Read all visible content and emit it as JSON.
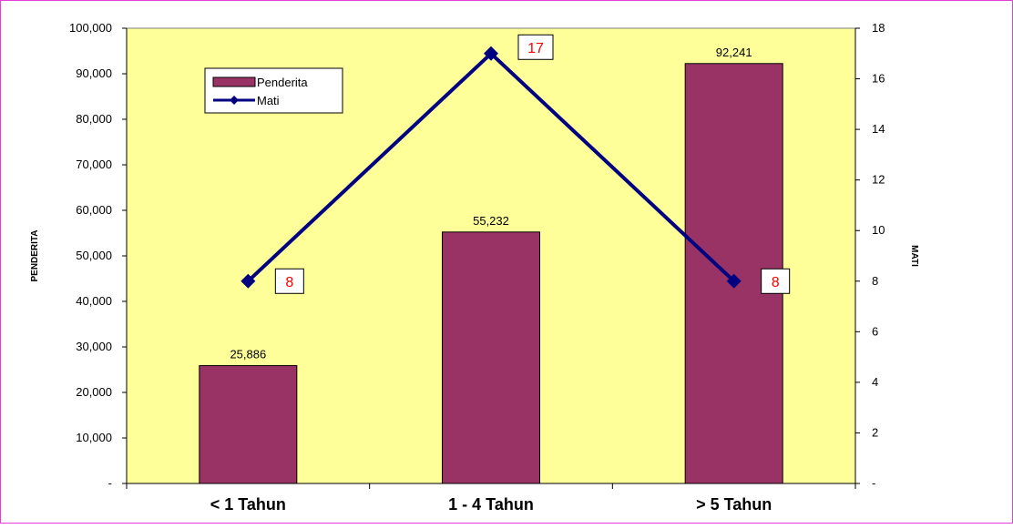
{
  "chart_data": {
    "type": "bar",
    "categories": [
      "< 1 Tahun",
      "1 - 4 Tahun",
      "> 5 Tahun"
    ],
    "series": [
      {
        "name": "Penderita",
        "type": "bar",
        "axis": "left",
        "color": "#993366",
        "values": [
          25886,
          55232,
          92241
        ],
        "value_labels": [
          "25,886",
          "55,232",
          "92,241"
        ]
      },
      {
        "name": "Mati",
        "type": "line",
        "axis": "right",
        "color": "#000080",
        "values": [
          8,
          17,
          8
        ],
        "value_labels": [
          "8",
          "17",
          "8"
        ]
      }
    ],
    "ylabel": "PENDERITA",
    "y2label": "MATI",
    "ylim": [
      0,
      100000
    ],
    "y2lim": [
      0,
      18
    ],
    "yticks": [
      {
        "value": 0,
        "label": "-"
      },
      {
        "value": 10000,
        "label": "10,000"
      },
      {
        "value": 20000,
        "label": "20,000"
      },
      {
        "value": 30000,
        "label": "30,000"
      },
      {
        "value": 40000,
        "label": "40,000"
      },
      {
        "value": 50000,
        "label": "50,000"
      },
      {
        "value": 60000,
        "label": "60,000"
      },
      {
        "value": 70000,
        "label": "70,000"
      },
      {
        "value": 80000,
        "label": "80,000"
      },
      {
        "value": 90000,
        "label": "90,000"
      },
      {
        "value": 100000,
        "label": "100,000"
      }
    ],
    "y2ticks": [
      {
        "value": 0,
        "label": "-"
      },
      {
        "value": 2,
        "label": "2"
      },
      {
        "value": 4,
        "label": "4"
      },
      {
        "value": 6,
        "label": "6"
      },
      {
        "value": 8,
        "label": "8"
      },
      {
        "value": 10,
        "label": "10"
      },
      {
        "value": 12,
        "label": "12"
      },
      {
        "value": 14,
        "label": "14"
      },
      {
        "value": 16,
        "label": "16"
      },
      {
        "value": 18,
        "label": "18"
      }
    ],
    "legend": {
      "placement": "top-left",
      "entries": [
        "Penderita",
        "Mati"
      ]
    },
    "plot_background": "#ffff99",
    "line_label_color": "#ff0000",
    "grid": false
  }
}
